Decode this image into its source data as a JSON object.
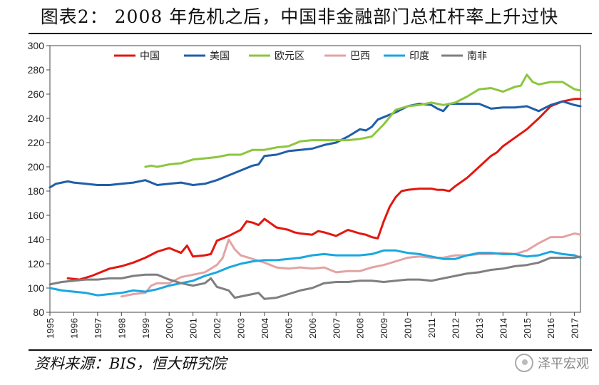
{
  "header": {
    "title": "图表2：  2008 年危机之后，中国非金融部门总杠杆率上升过快"
  },
  "footer": {
    "source": "资料来源：BIS，恒大研究院",
    "watermark": "泽平宏观"
  },
  "chart_data": {
    "type": "line",
    "title": "图表2：  2008 年危机之后，中国非金融部门总杠杆率上升过快",
    "xlabel": "",
    "ylabel": "",
    "xlim": [
      1995,
      2017.25
    ],
    "ylim": [
      80,
      300
    ],
    "yticks": [
      80,
      100,
      120,
      140,
      160,
      180,
      200,
      220,
      240,
      260,
      280,
      300
    ],
    "xticks": [
      "1995",
      "1996",
      "1997",
      "1998",
      "1999",
      "2000",
      "2001",
      "2002",
      "2003",
      "2004",
      "2005",
      "2006",
      "2007",
      "2008",
      "2009",
      "2010",
      "2011",
      "2012",
      "2013",
      "2014",
      "2015",
      "2016",
      "2017"
    ],
    "legend_position": "top",
    "grid": false,
    "series": [
      {
        "name": "中国",
        "color": "#e3170f",
        "x": [
          1995.75,
          1996.25,
          1996.75,
          1997.0,
          1997.5,
          1998.0,
          1998.5,
          1999.0,
          1999.5,
          2000.0,
          2000.5,
          2000.75,
          2001.0,
          2001.5,
          2001.75,
          2002.0,
          2002.5,
          2003.0,
          2003.25,
          2003.5,
          2003.75,
          2004.0,
          2004.5,
          2005.0,
          2005.25,
          2005.5,
          2006.0,
          2006.25,
          2006.5,
          2007.0,
          2007.5,
          2008.0,
          2008.25,
          2008.5,
          2008.75,
          2009.0,
          2009.25,
          2009.5,
          2009.75,
          2010.0,
          2010.5,
          2011.0,
          2011.25,
          2011.5,
          2011.75,
          2012.0,
          2012.5,
          2013.0,
          2013.5,
          2013.75,
          2014.0,
          2014.5,
          2015.0,
          2015.5,
          2016.0,
          2016.5,
          2017.0,
          2017.25
        ],
        "y": [
          108,
          107,
          110,
          112,
          116,
          118,
          121,
          125,
          130,
          133,
          129,
          135,
          126,
          127,
          128,
          139,
          143,
          148,
          155,
          154,
          152,
          157,
          150,
          148,
          146,
          145,
          144,
          147,
          146,
          143,
          148,
          145,
          144,
          142,
          141,
          155,
          167,
          175,
          180,
          181,
          182,
          182,
          181,
          181,
          180,
          184,
          191,
          200,
          209,
          212,
          217,
          224,
          231,
          240,
          250,
          254,
          256,
          256
        ]
      },
      {
        "name": "美国",
        "color": "#1f5fa8",
        "x": [
          1995.0,
          1995.25,
          1995.5,
          1995.75,
          1996.0,
          1996.5,
          1997.0,
          1997.5,
          1998.0,
          1998.5,
          1999.0,
          1999.5,
          2000.0,
          2000.5,
          2001.0,
          2001.5,
          2002.0,
          2002.5,
          2003.0,
          2003.5,
          2003.75,
          2004.0,
          2004.5,
          2005.0,
          2005.5,
          2006.0,
          2006.5,
          2007.0,
          2007.5,
          2008.0,
          2008.25,
          2008.5,
          2008.75,
          2009.0,
          2009.5,
          2010.0,
          2010.5,
          2011.0,
          2011.25,
          2011.5,
          2011.75,
          2012.0,
          2012.5,
          2013.0,
          2013.5,
          2014.0,
          2014.5,
          2015.0,
          2015.5,
          2016.0,
          2016.5,
          2017.0,
          2017.25
        ],
        "y": [
          183,
          186,
          187,
          188,
          187,
          186,
          185,
          185,
          186,
          187,
          189,
          185,
          186,
          187,
          185,
          186,
          189,
          193,
          197,
          201,
          202,
          209,
          210,
          213,
          214,
          215,
          218,
          220,
          225,
          231,
          230,
          233,
          239,
          241,
          245,
          250,
          252,
          251,
          248,
          246,
          252,
          252,
          252,
          252,
          248,
          249,
          249,
          250,
          246,
          251,
          254,
          251,
          250
        ]
      },
      {
        "name": "欧元区",
        "color": "#8cc63f",
        "x": [
          1999.0,
          1999.25,
          1999.5,
          1999.75,
          2000.0,
          2000.5,
          2001.0,
          2001.5,
          2002.0,
          2002.5,
          2003.0,
          2003.5,
          2004.0,
          2004.5,
          2005.0,
          2005.5,
          2006.0,
          2006.5,
          2007.0,
          2007.5,
          2008.0,
          2008.5,
          2009.0,
          2009.5,
          2010.0,
          2010.5,
          2011.0,
          2011.5,
          2012.0,
          2012.5,
          2013.0,
          2013.5,
          2014.0,
          2014.5,
          2014.75,
          2015.0,
          2015.25,
          2015.5,
          2016.0,
          2016.5,
          2017.0,
          2017.25
        ],
        "y": [
          200,
          201,
          200,
          201,
          202,
          203,
          206,
          207,
          208,
          210,
          210,
          214,
          214,
          216,
          217,
          221,
          222,
          222,
          222,
          222,
          223,
          225,
          235,
          247,
          250,
          251,
          253,
          251,
          253,
          258,
          264,
          265,
          262,
          266,
          267,
          276,
          270,
          268,
          270,
          270,
          264,
          263
        ]
      },
      {
        "name": "巴西",
        "color": "#e3a3a3",
        "x": [
          1998.0,
          1998.5,
          1999.0,
          1999.25,
          1999.5,
          2000.0,
          2000.5,
          2001.0,
          2001.5,
          2002.0,
          2002.25,
          2002.5,
          2002.75,
          2003.0,
          2003.5,
          2004.0,
          2004.5,
          2005.0,
          2005.5,
          2006.0,
          2006.5,
          2007.0,
          2007.5,
          2008.0,
          2008.5,
          2009.0,
          2009.5,
          2010.0,
          2010.5,
          2011.0,
          2011.5,
          2012.0,
          2012.5,
          2013.0,
          2013.5,
          2014.0,
          2014.5,
          2015.0,
          2015.5,
          2016.0,
          2016.5,
          2017.0,
          2017.25
        ],
        "y": [
          93,
          95,
          96,
          102,
          104,
          104,
          109,
          111,
          113,
          119,
          125,
          140,
          132,
          127,
          124,
          121,
          117,
          116,
          117,
          116,
          117,
          113,
          114,
          114,
          117,
          119,
          122,
          125,
          126,
          125,
          125,
          127,
          127,
          128,
          128,
          129,
          128,
          131,
          137,
          142,
          142,
          145,
          144
        ]
      },
      {
        "name": "印度",
        "color": "#1aa7df",
        "x": [
          1995.0,
          1995.5,
          1996.0,
          1996.5,
          1997.0,
          1997.5,
          1998.0,
          1998.5,
          1999.0,
          1999.5,
          2000.0,
          2000.5,
          2001.0,
          2001.5,
          2002.0,
          2002.5,
          2003.0,
          2003.5,
          2004.0,
          2004.5,
          2005.0,
          2005.5,
          2006.0,
          2006.5,
          2007.0,
          2007.5,
          2008.0,
          2008.5,
          2009.0,
          2009.5,
          2010.0,
          2010.5,
          2011.0,
          2011.5,
          2012.0,
          2012.5,
          2013.0,
          2013.5,
          2014.0,
          2014.5,
          2015.0,
          2015.5,
          2016.0,
          2016.5,
          2017.0,
          2017.25
        ],
        "y": [
          100,
          98,
          97,
          96,
          94,
          95,
          96,
          98,
          97,
          99,
          102,
          104,
          106,
          110,
          113,
          117,
          120,
          122,
          123,
          123,
          124,
          125,
          127,
          128,
          127,
          127,
          127,
          128,
          131,
          131,
          129,
          128,
          126,
          124,
          124,
          127,
          129,
          129,
          128,
          128,
          126,
          127,
          130,
          128,
          127,
          125
        ]
      },
      {
        "name": "南非",
        "color": "#7f7f7f",
        "x": [
          1995.0,
          1995.5,
          1996.0,
          1996.5,
          1997.0,
          1997.5,
          1998.0,
          1998.5,
          1999.0,
          1999.5,
          2000.0,
          2000.5,
          2001.0,
          2001.5,
          2001.75,
          2002.0,
          2002.5,
          2002.75,
          2003.0,
          2003.5,
          2003.75,
          2004.0,
          2004.5,
          2005.0,
          2005.5,
          2006.0,
          2006.5,
          2007.0,
          2007.5,
          2008.0,
          2008.5,
          2009.0,
          2009.5,
          2010.0,
          2010.5,
          2011.0,
          2011.5,
          2012.0,
          2012.5,
          2013.0,
          2013.5,
          2014.0,
          2014.5,
          2015.0,
          2015.5,
          2016.0,
          2016.5,
          2017.0,
          2017.25
        ],
        "y": [
          103,
          105,
          106,
          107,
          107,
          108,
          108,
          110,
          111,
          111,
          107,
          104,
          102,
          104,
          108,
          101,
          98,
          92,
          93,
          95,
          96,
          91,
          92,
          95,
          98,
          100,
          104,
          105,
          105,
          106,
          106,
          105,
          106,
          107,
          107,
          106,
          108,
          110,
          112,
          113,
          115,
          116,
          118,
          119,
          121,
          125,
          125,
          125,
          126
        ]
      }
    ]
  }
}
